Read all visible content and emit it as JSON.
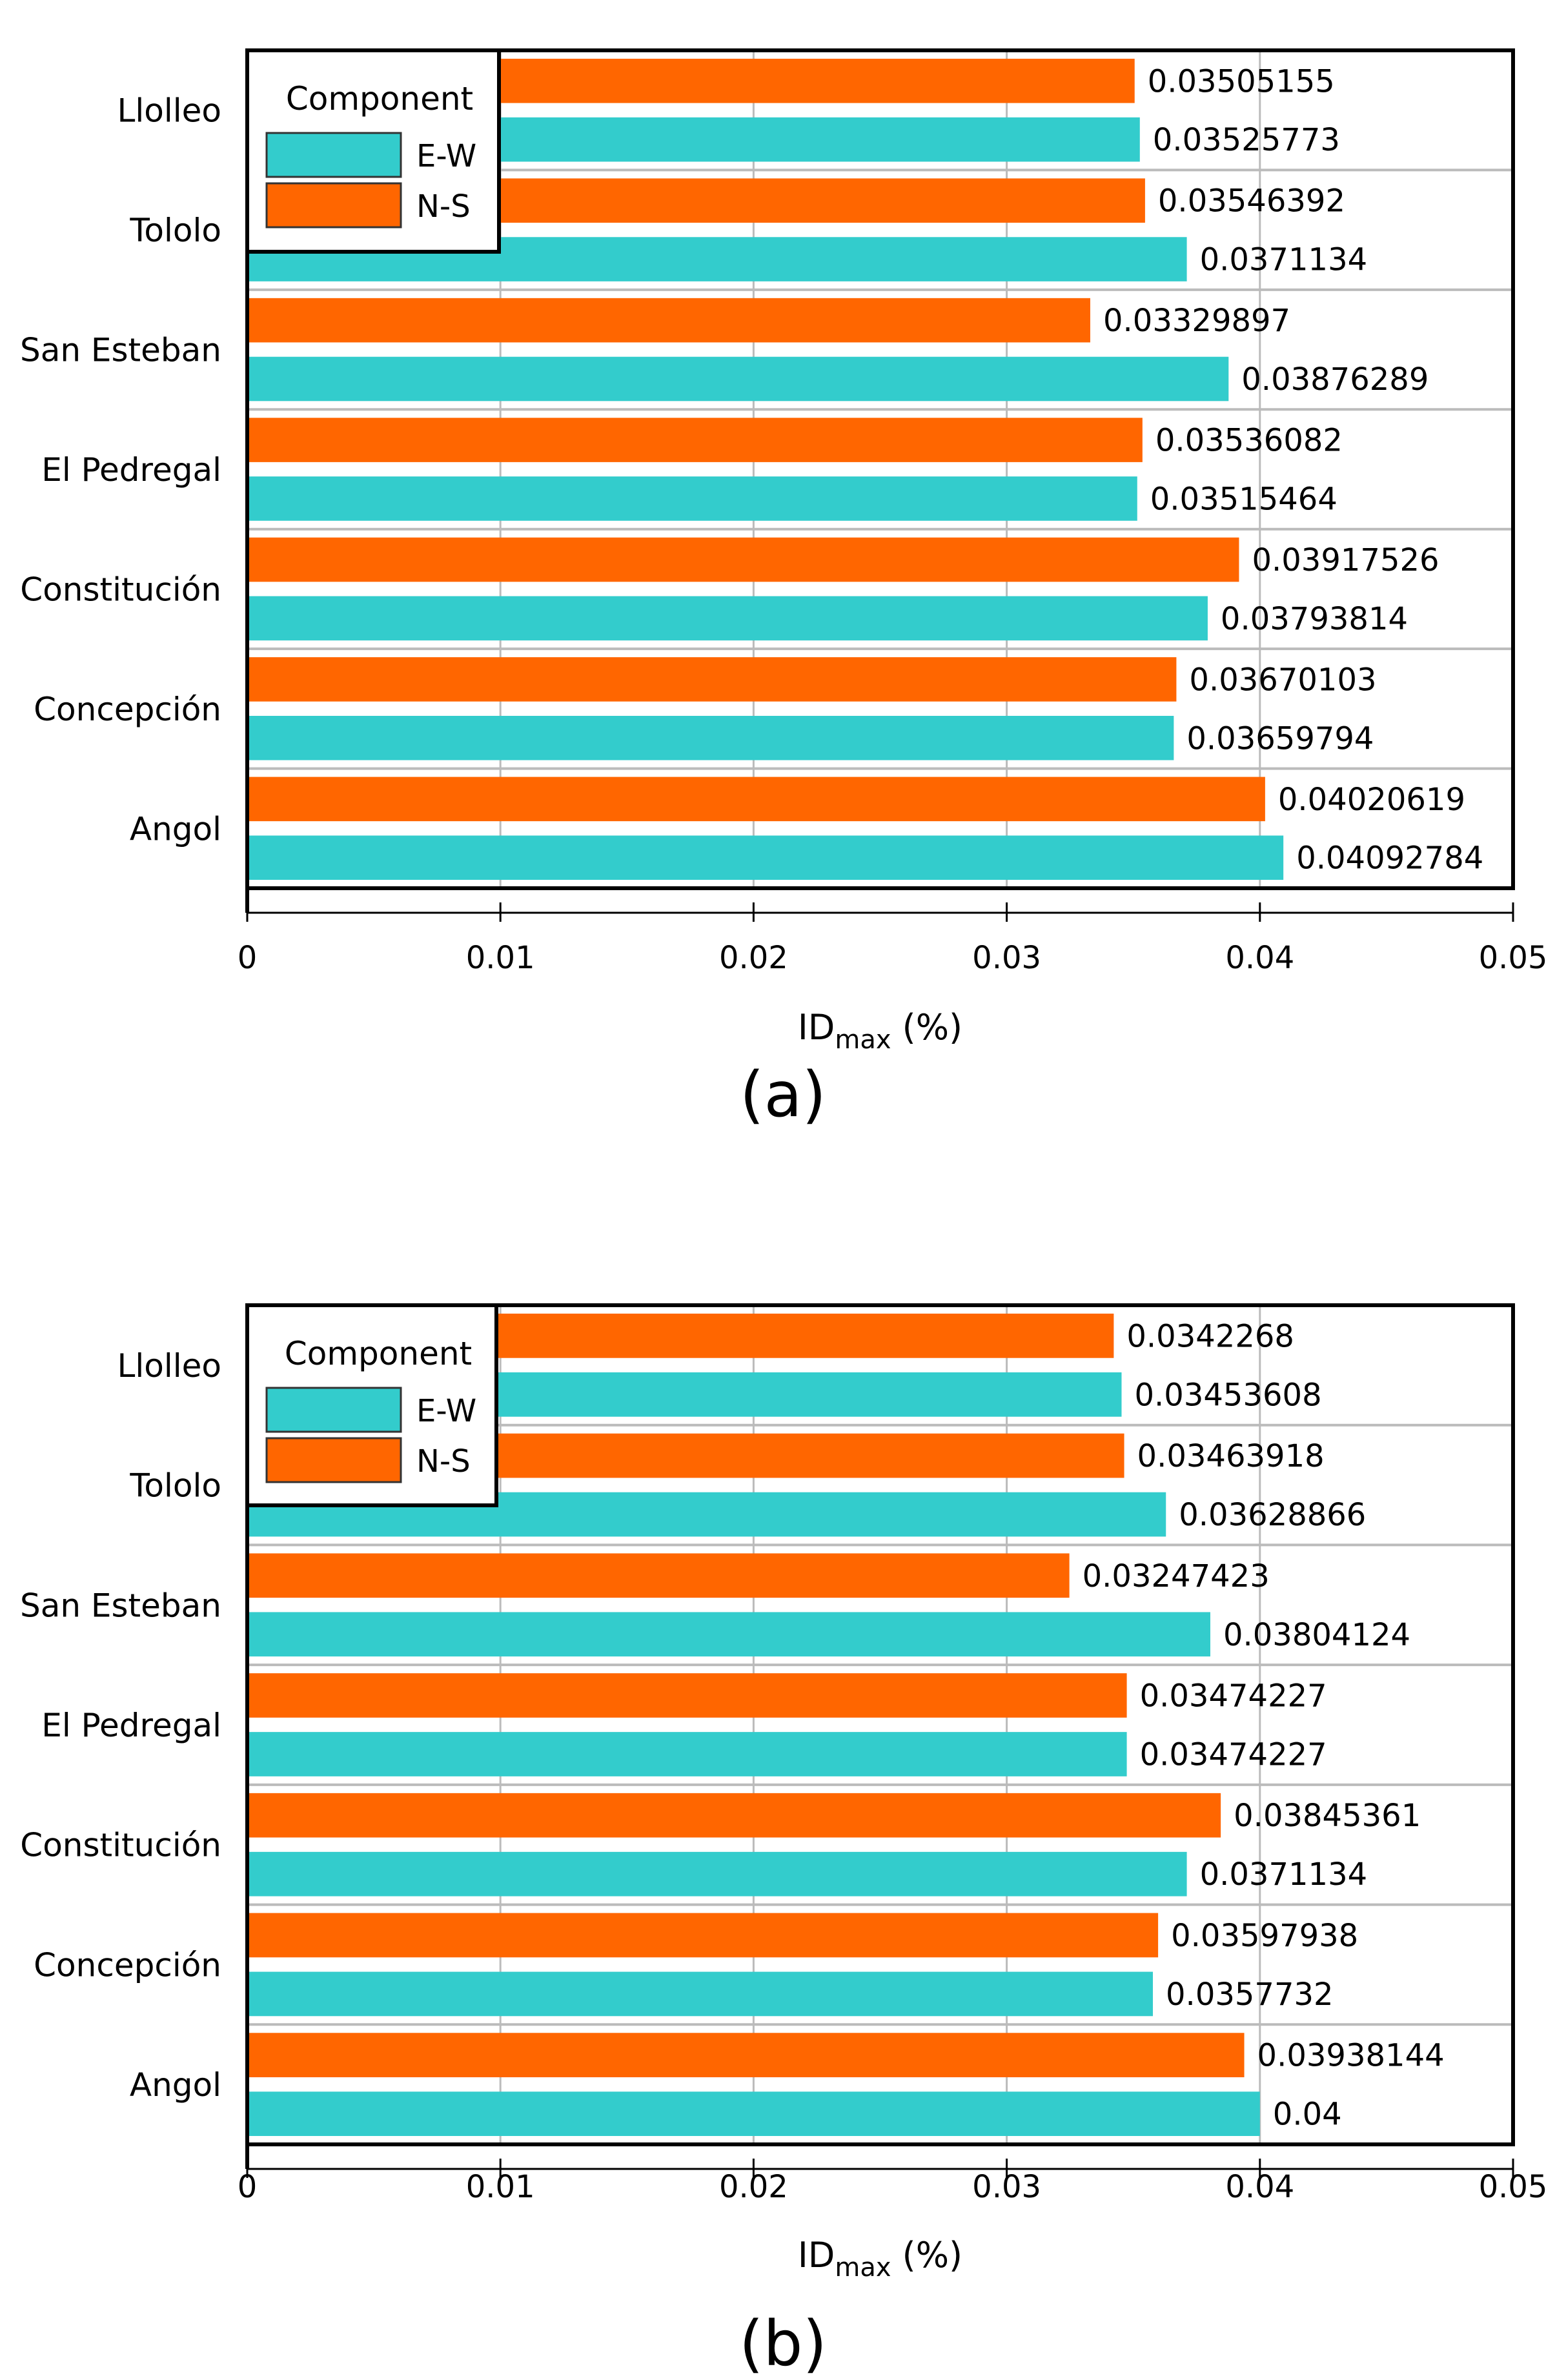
{
  "colors": {
    "ew": "#33cccc",
    "ns": "#ff6600",
    "axis": "#000000",
    "grid": "#bbbbbb",
    "background": "#ffffff"
  },
  "chart_data": [
    {
      "type": "bar",
      "orientation": "horizontal",
      "panel_label": "(a)",
      "xlabel_main": "ID",
      "xlabel_sub": "max",
      "xlabel_unit": " (%)",
      "xlim": [
        0,
        0.05
      ],
      "xticks": [
        "0",
        "0.01",
        "0.02",
        "0.03",
        "0.04",
        "0.05"
      ],
      "xtick_values": [
        0,
        0.01,
        0.02,
        0.03,
        0.04,
        0.05
      ],
      "categories": [
        "Llolleo",
        "Tololo",
        "San Esteban",
        "El Pedregal",
        "Constitución",
        "Concepción",
        "Angol"
      ],
      "legend_title": "Component",
      "legend_position": "top-left",
      "series": [
        {
          "name": "E-W",
          "values": [
            0.03525773,
            0.0371134,
            0.03876289,
            0.03515464,
            0.03793814,
            0.03659794,
            0.04092784
          ],
          "labels": [
            "0.03525773",
            "0.0371134",
            "0.03876289",
            "0.03515464",
            "0.03793814",
            "0.03659794",
            "0.04092784"
          ]
        },
        {
          "name": "N-S",
          "values": [
            0.03505155,
            0.03546392,
            0.03329897,
            0.03536082,
            0.03917526,
            0.03670103,
            0.04020619
          ],
          "labels": [
            "0.03505155",
            "0.03546392",
            "0.03329897",
            "0.03536082",
            "0.03917526",
            "0.03670103",
            "0.04020619"
          ]
        }
      ]
    },
    {
      "type": "bar",
      "orientation": "horizontal",
      "panel_label": "(b)",
      "xlabel_main": "ID",
      "xlabel_sub": "max",
      "xlabel_unit": " (%)",
      "xlim": [
        0,
        0.05
      ],
      "xticks": [
        "0",
        "0.01",
        "0.02",
        "0.03",
        "0.04",
        "0.05"
      ],
      "xtick_values": [
        0,
        0.01,
        0.02,
        0.03,
        0.04,
        0.05
      ],
      "categories": [
        "Llolleo",
        "Tololo",
        "San Esteban",
        "El Pedregal",
        "Constitución",
        "Concepción",
        "Angol"
      ],
      "legend_title": "Component",
      "legend_position": "top-left",
      "series": [
        {
          "name": "E-W",
          "values": [
            0.03453608,
            0.03628866,
            0.03804124,
            0.03474227,
            0.0371134,
            0.0357732,
            0.04
          ],
          "labels": [
            "0.03453608",
            "0.03628866",
            "0.03804124",
            "0.03474227",
            "0.0371134",
            "0.0357732",
            "0.04"
          ]
        },
        {
          "name": "N-S",
          "values": [
            0.0342268,
            0.03463918,
            0.03247423,
            0.03474227,
            0.03845361,
            0.03597938,
            0.03938144
          ],
          "labels": [
            "0.0342268",
            "0.03463918",
            "0.03247423",
            "0.03474227",
            "0.03845361",
            "0.03597938",
            "0.03938144"
          ]
        }
      ]
    }
  ]
}
